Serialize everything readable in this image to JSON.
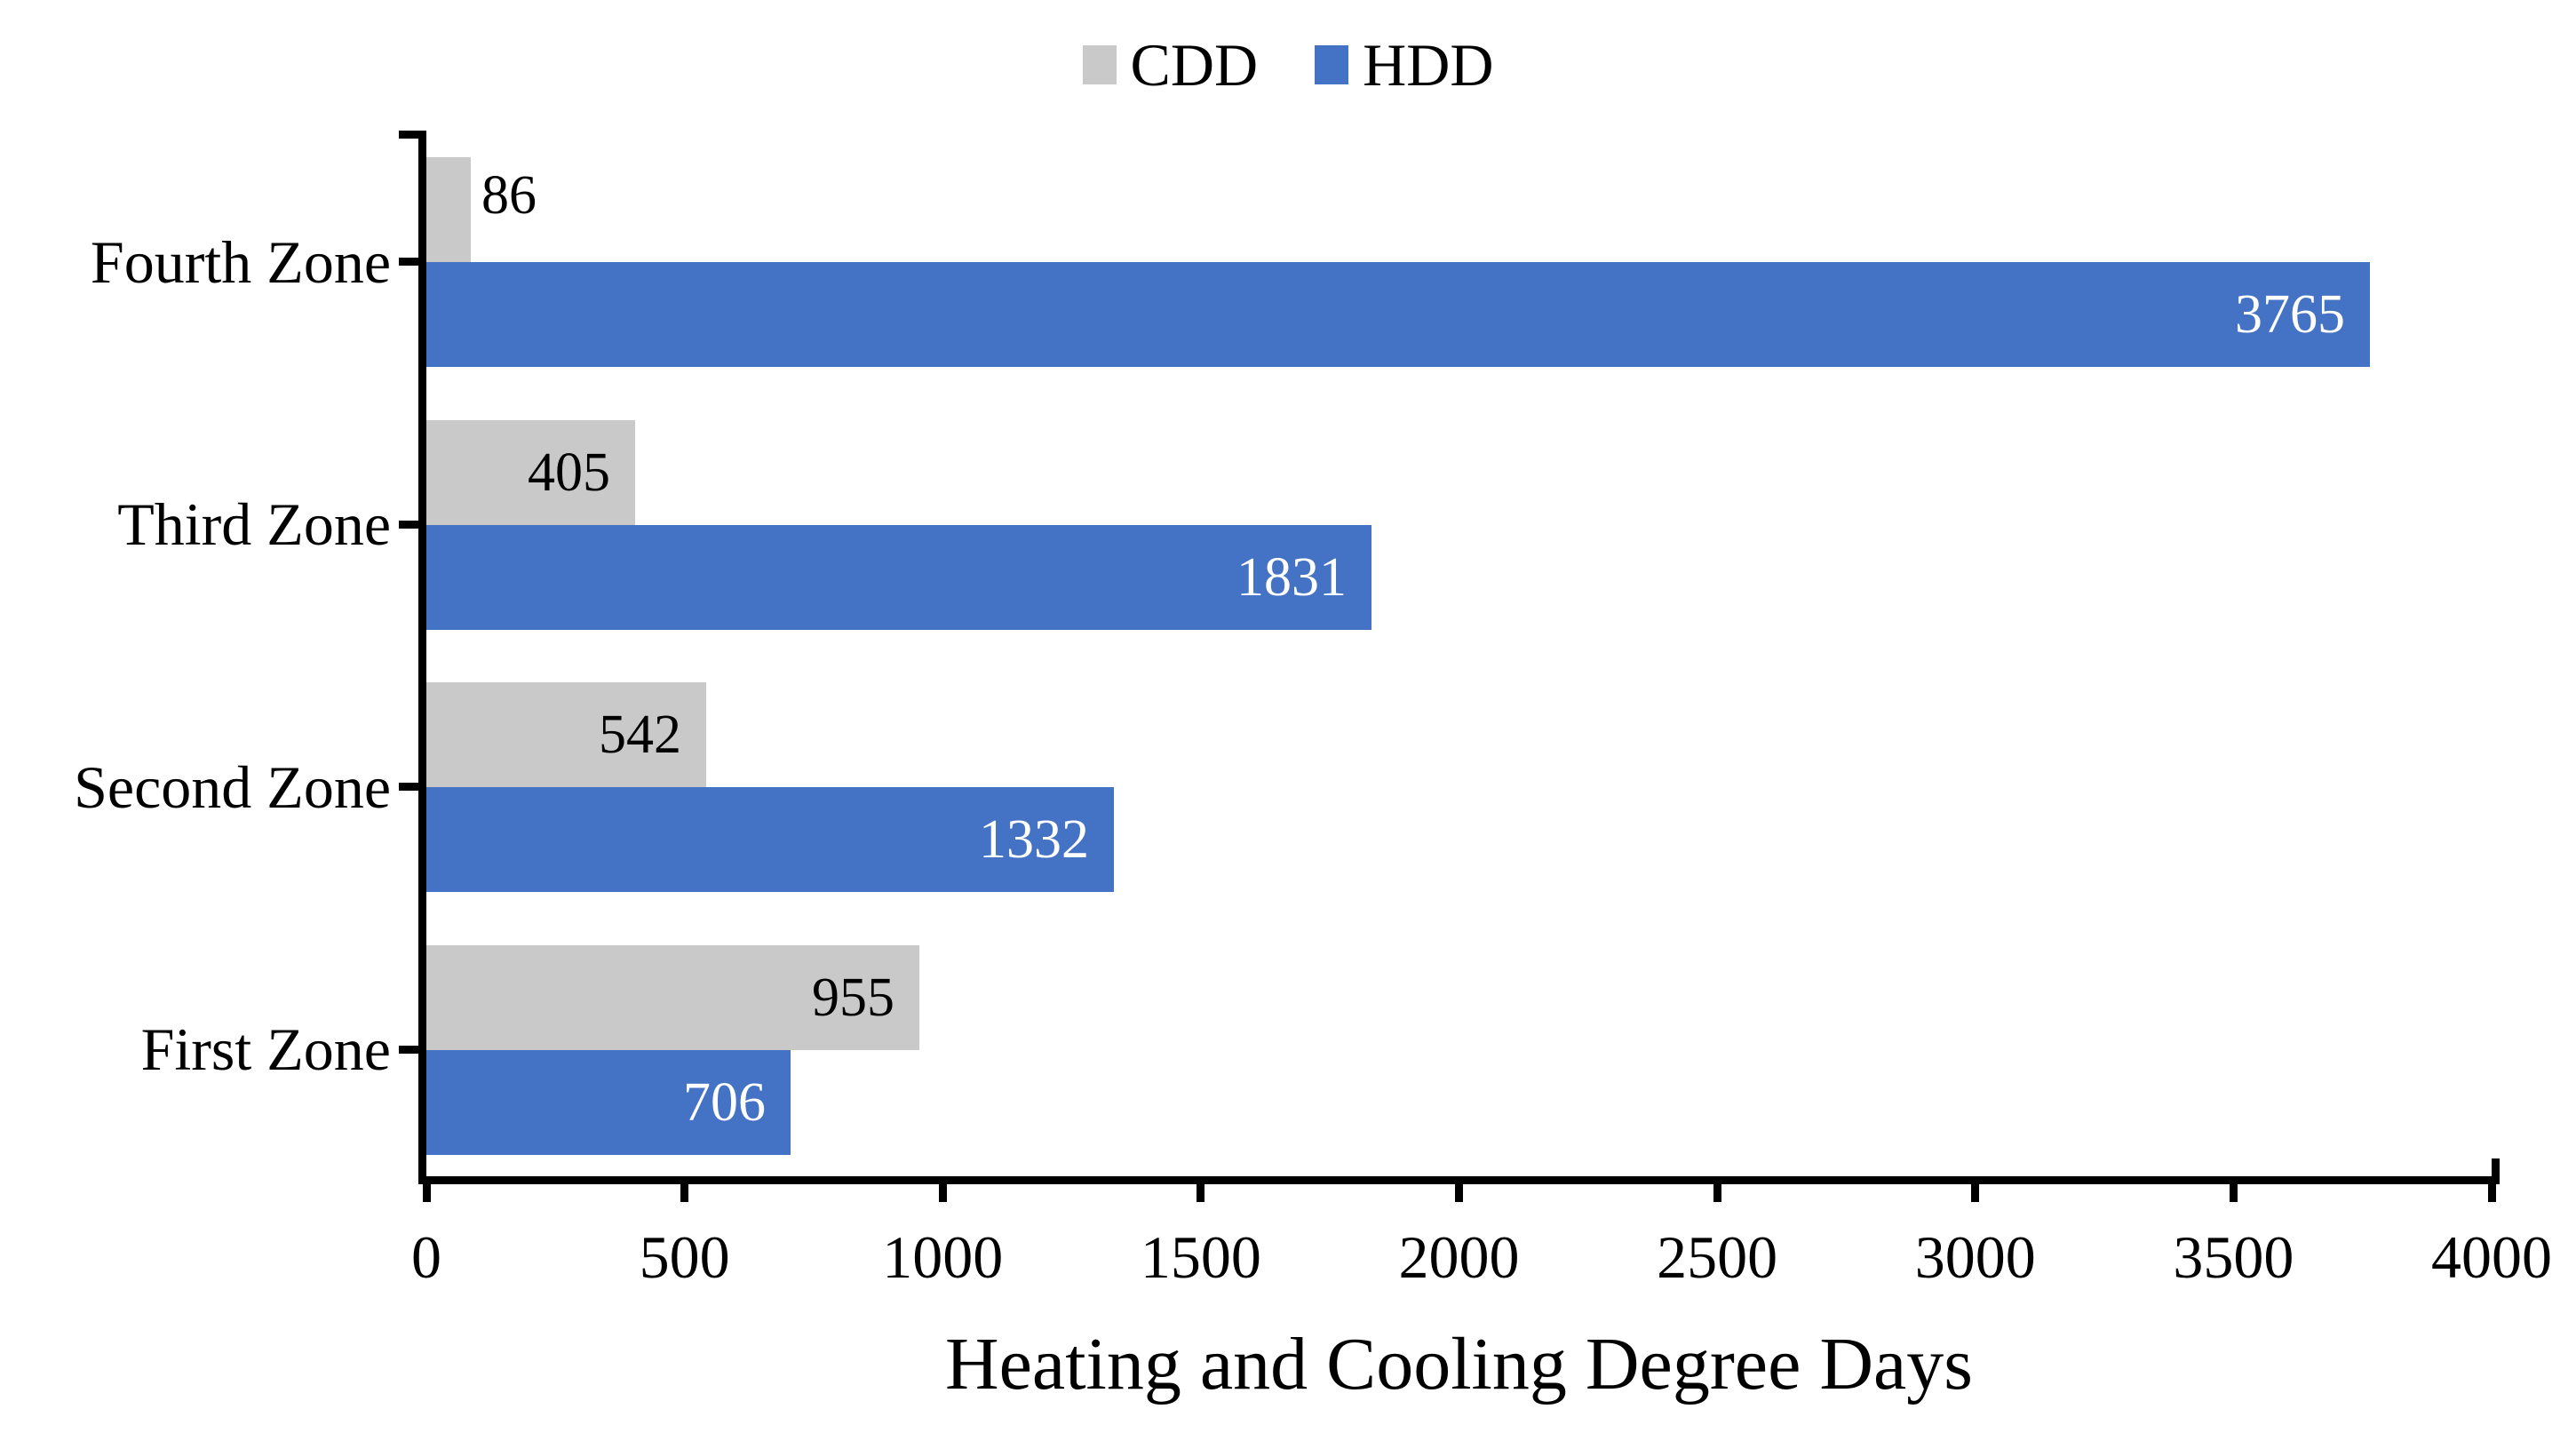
{
  "chart_data": {
    "type": "bar",
    "orientation": "horizontal",
    "title": "",
    "xlabel": "Heating and Cooling Degree Days",
    "ylabel": "",
    "categories": [
      "Fourth Zone",
      "Third Zone",
      "Second Zone",
      "First Zone"
    ],
    "series": [
      {
        "name": "CDD",
        "color": "#C9C9C9",
        "label_color": "#000000",
        "values": [
          86,
          405,
          542,
          955
        ]
      },
      {
        "name": "HDD",
        "color": "#4472C4",
        "label_color": "#FFFFFF",
        "values": [
          3765,
          1831,
          1332,
          706
        ]
      }
    ],
    "xlim": [
      0,
      4000
    ],
    "xticks": [
      "0",
      "500",
      "1000",
      "1500",
      "2000",
      "2500",
      "3000",
      "3500",
      "4000"
    ],
    "legend_position": "top",
    "grid": false,
    "axis_color": "#000000",
    "background_color": "#FFFFFF"
  }
}
